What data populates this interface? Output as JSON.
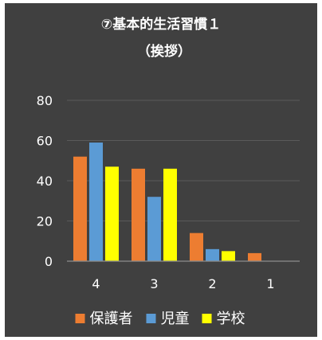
{
  "chart_data": {
    "type": "bar",
    "title": "⑦基本的生活習慣１",
    "subtitle": "（挨拶）",
    "xlabel": "",
    "ylabel": "",
    "categories": [
      "4",
      "3",
      "2",
      "1"
    ],
    "series": [
      {
        "name": "保護者",
        "values": [
          52,
          46,
          14,
          4
        ],
        "color": "#ed7d31"
      },
      {
        "name": "児童",
        "values": [
          59,
          32,
          6,
          0
        ],
        "color": "#5b9bd5"
      },
      {
        "name": "学校",
        "values": [
          47,
          46,
          5,
          0
        ],
        "color": "#ffff00"
      }
    ],
    "ylim": [
      0,
      80
    ],
    "yticks": [
      "0",
      "20",
      "40",
      "60",
      "80"
    ],
    "grid": true,
    "legend": "bottom",
    "colors": {
      "background": "#404040",
      "text": "#ffffff",
      "gridline": "#5a5a5a",
      "axis": "#8c8c8c"
    }
  }
}
